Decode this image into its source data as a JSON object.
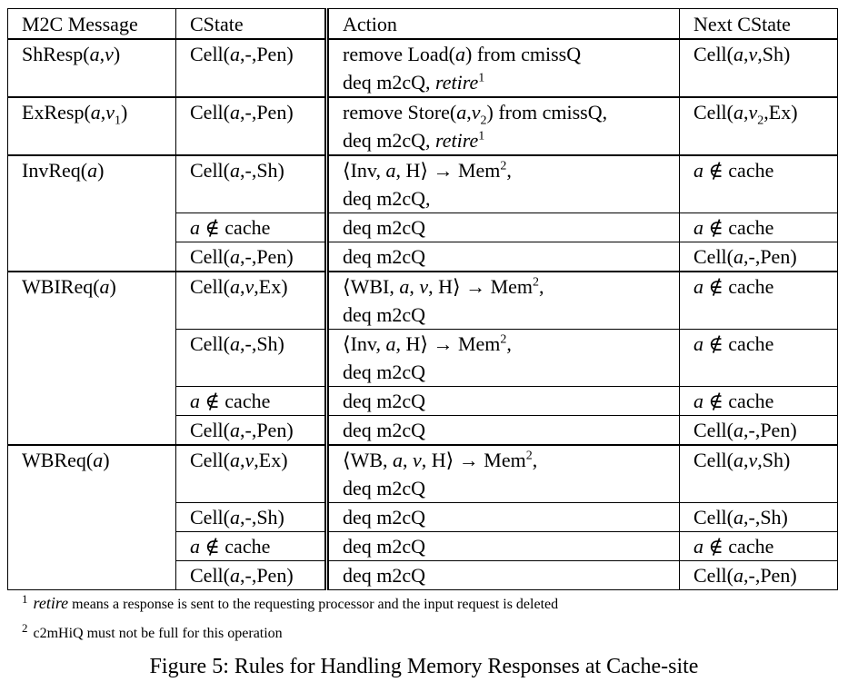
{
  "table": {
    "headers": [
      "M2C Message",
      "CState",
      "Action",
      "Next CState"
    ],
    "groups": [
      {
        "message": "ShResp(a,v)",
        "rows": [
          {
            "cstate": "Cell(a,-,Pen)",
            "action": [
              "remove Load(a) from cmissQ",
              "deq m2cQ, retire¹"
            ],
            "next": "Cell(a,v,Sh)"
          }
        ]
      },
      {
        "message": "ExResp(a,v₁)",
        "rows": [
          {
            "cstate": "Cell(a,-,Pen)",
            "action": [
              "remove Store(a,v₂) from cmissQ,",
              "deq m2cQ, retire¹"
            ],
            "next": "Cell(a,v₂,Ex)"
          }
        ]
      },
      {
        "message": "InvReq(a)",
        "rows": [
          {
            "cstate": "Cell(a,-,Sh)",
            "action": [
              "⟨Inv, a, H⟩ → Mem²,",
              "deq m2cQ,"
            ],
            "next": "a ∉ cache"
          },
          {
            "cstate": "a ∉ cache",
            "action": [
              "deq m2cQ"
            ],
            "next": "a ∉ cache"
          },
          {
            "cstate": "Cell(a,-,Pen)",
            "action": [
              "deq m2cQ"
            ],
            "next": "Cell(a,-,Pen)"
          }
        ]
      },
      {
        "message": "WBIReq(a)",
        "rows": [
          {
            "cstate": "Cell(a,v,Ex)",
            "action": [
              "⟨WBI, a, v, H⟩ → Mem²,",
              "deq m2cQ"
            ],
            "next": "a ∉ cache"
          },
          {
            "cstate": "Cell(a,-,Sh)",
            "action": [
              "⟨Inv, a, H⟩ → Mem²,",
              "deq m2cQ"
            ],
            "next": "a ∉ cache"
          },
          {
            "cstate": "a ∉ cache",
            "action": [
              "deq m2cQ"
            ],
            "next": "a ∉ cache"
          },
          {
            "cstate": "Cell(a,-,Pen)",
            "action": [
              "deq m2cQ"
            ],
            "next": "Cell(a,-,Pen)"
          }
        ]
      },
      {
        "message": "WBReq(a)",
        "rows": [
          {
            "cstate": "Cell(a,v,Ex)",
            "action": [
              "⟨WB, a, v, H⟩ → Mem²,",
              "deq m2cQ"
            ],
            "next": "Cell(a,v,Sh)"
          },
          {
            "cstate": "Cell(a,-,Sh)",
            "action": [
              "deq m2cQ"
            ],
            "next": "Cell(a,-,Sh)"
          },
          {
            "cstate": "a ∉ cache",
            "action": [
              "deq m2cQ"
            ],
            "next": "a ∉ cache"
          },
          {
            "cstate": "Cell(a,-,Pen)",
            "action": [
              "deq m2cQ"
            ],
            "next": "Cell(a,-,Pen)"
          }
        ]
      }
    ]
  },
  "footnotes": [
    "¹ retire means a response is sent to the requesting processor and the input request is deleted",
    "² c2mHiQ must not be full for this operation"
  ],
  "caption": "Figure 5: Rules for Handling Memory Responses at Cache-site"
}
